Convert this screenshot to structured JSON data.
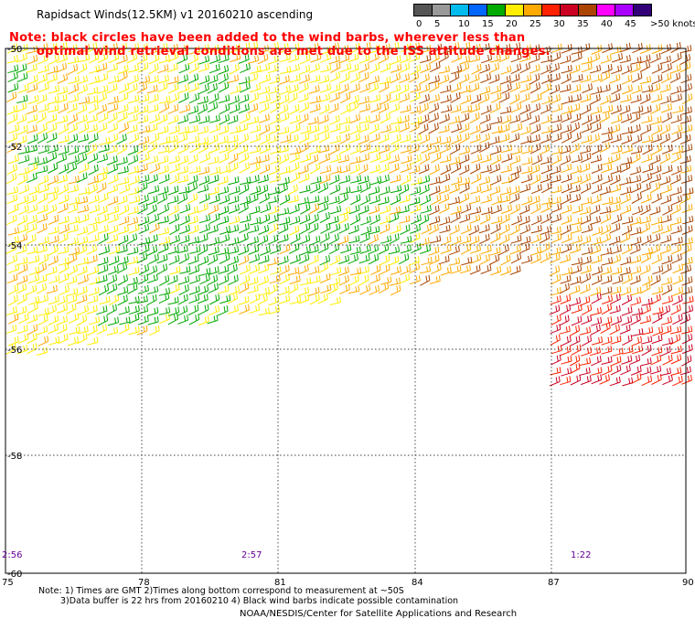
{
  "title": "Rapidsact Winds(12.5KM) v1 20160210 ascending",
  "note": {
    "line1": "Note: black circles have been added to the wind barbs, wherever less than",
    "line2": "optimal wind retrieval conditions are met due to the ISS attitude changes."
  },
  "legend": {
    "labels": [
      "0",
      "5",
      "10",
      "15",
      "20",
      "25",
      "30",
      "35",
      "40",
      "45",
      ">50 knots"
    ],
    "colors": [
      "#555555",
      "#999999",
      "#00bbee",
      "#0066ff",
      "#00aa00",
      "#ffee00",
      "#ffaa00",
      "#ff2200",
      "#cc0022",
      "#aa4400",
      "#ff00ff",
      "#aa00ff",
      "#330077"
    ]
  },
  "map": {
    "lon_ticks": [
      "75",
      "78",
      "81",
      "84",
      "87",
      "90"
    ],
    "lat_ticks": [
      "-50",
      "-52",
      "-54",
      "-56",
      "-58",
      "-60"
    ],
    "pass_times": [
      "2:56",
      "2:57",
      "1:22"
    ]
  },
  "footnotes": {
    "line1": "Note: 1) Times are GMT 2)Times along bottom correspond to measurement at ~50S",
    "line2": "3)Data buffer is 22 hrs from 20160210 4) Black wind barbs indicate possible contamination",
    "credit": "NOAA/NESDIS/Center for Satellite Applications and Research"
  }
}
